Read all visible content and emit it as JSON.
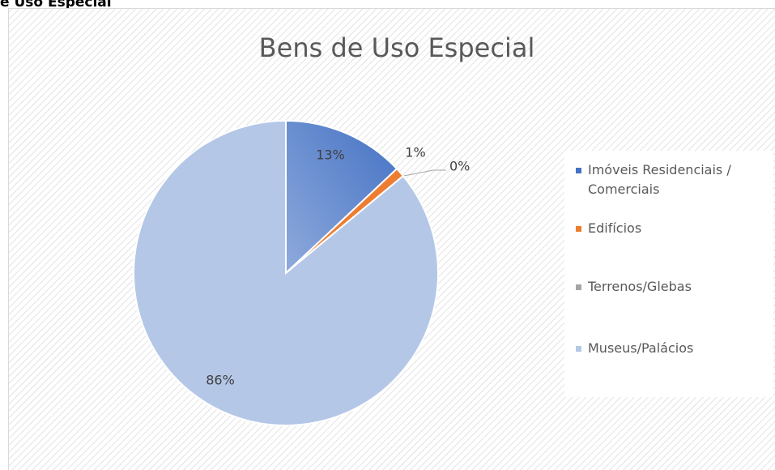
{
  "heading": "e Uso Especial",
  "chart_data": {
    "type": "pie",
    "title": "Bens de Uso Especial",
    "categories": [
      "Imóveis Residenciais / Comerciais",
      "Edifícios",
      "Terrenos/Glebas",
      "Museus/Palácios"
    ],
    "values": [
      13,
      1,
      0,
      86
    ],
    "value_labels": [
      "13%",
      "1%",
      "0%",
      "86%"
    ],
    "colors": [
      "#4472c4",
      "#ed7d31",
      "#a5a5a5",
      "#b4c7e7"
    ],
    "legend": "right"
  }
}
